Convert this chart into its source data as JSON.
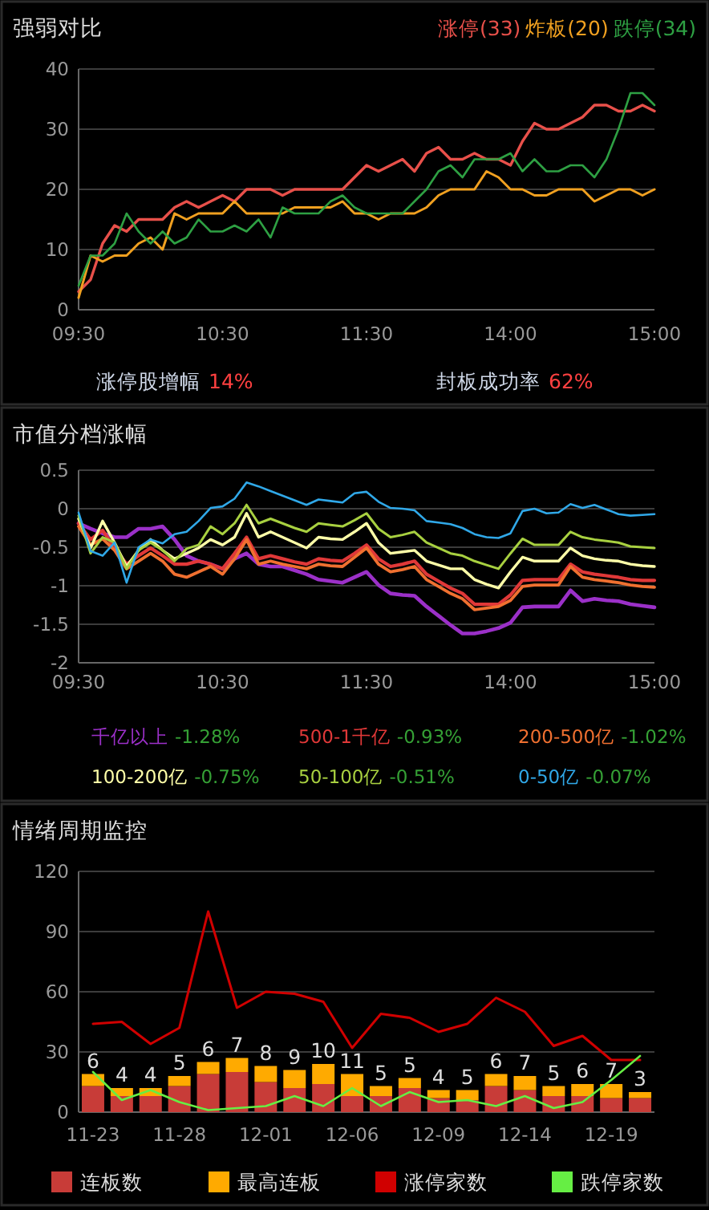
{
  "chart_data": [
    {
      "type": "line",
      "title": "强弱对比",
      "categories": [
        "09:30",
        null,
        null,
        null,
        null,
        null,
        null,
        null,
        null,
        null,
        null,
        null,
        "10:30",
        null,
        null,
        null,
        null,
        null,
        null,
        null,
        null,
        null,
        null,
        null,
        "11:30",
        null,
        null,
        null,
        null,
        null,
        null,
        null,
        null,
        null,
        null,
        null,
        "14:00",
        null,
        null,
        null,
        null,
        null,
        null,
        null,
        null,
        null,
        null,
        null,
        "15:00"
      ],
      "ylim": [
        0,
        40
      ],
      "yticks": [
        0,
        10,
        20,
        30,
        40
      ],
      "grid": "y",
      "legend": "top right",
      "annotations": [
        "涨停股增幅 14%",
        "封板成功率 62%"
      ],
      "series": [
        {
          "name": "涨停(33)",
          "color": "#e8504a",
          "values": [
            3,
            5,
            11,
            14,
            13,
            15,
            15,
            15,
            17,
            18,
            17,
            18,
            19,
            18,
            20,
            20,
            20,
            19,
            20,
            20,
            20,
            20,
            20,
            22,
            24,
            23,
            24,
            25,
            23,
            26,
            27,
            25,
            25,
            26,
            25,
            25,
            24,
            28,
            31,
            30,
            30,
            31,
            32,
            34,
            34,
            33,
            33,
            34,
            33
          ]
        },
        {
          "name": "炸板(20)",
          "color": "#f0a020",
          "values": [
            2,
            9,
            8,
            9,
            9,
            11,
            12,
            10,
            16,
            15,
            16,
            16,
            16,
            18,
            16,
            16,
            16,
            16,
            17,
            17,
            17,
            17,
            18,
            16,
            16,
            15,
            16,
            16,
            16,
            17,
            19,
            20,
            20,
            20,
            23,
            22,
            20,
            20,
            19,
            19,
            20,
            20,
            20,
            18,
            19,
            20,
            20,
            19,
            20
          ]
        },
        {
          "name": "跌停(34)",
          "color": "#2ea043",
          "values": [
            4,
            9,
            9,
            11,
            16,
            13,
            11,
            13,
            11,
            12,
            15,
            13,
            13,
            14,
            13,
            15,
            12,
            17,
            16,
            16,
            16,
            18,
            19,
            17,
            16,
            16,
            16,
            16,
            18,
            20,
            23,
            24,
            22,
            25,
            25,
            25,
            26,
            23,
            25,
            23,
            23,
            24,
            24,
            22,
            25,
            30,
            36,
            36,
            34
          ]
        }
      ]
    },
    {
      "type": "line",
      "title": "市值分档涨幅",
      "categories": [
        "09:30",
        null,
        null,
        null,
        null,
        null,
        null,
        null,
        null,
        null,
        null,
        null,
        "10:30",
        null,
        null,
        null,
        null,
        null,
        null,
        null,
        null,
        null,
        null,
        null,
        "11:30",
        null,
        null,
        null,
        null,
        null,
        null,
        null,
        null,
        null,
        null,
        null,
        "14:00",
        null,
        null,
        null,
        null,
        null,
        null,
        null,
        null,
        null,
        null,
        null,
        "15:00"
      ],
      "ylim": [
        -2,
        0.5
      ],
      "yticks": [
        {
          "value": 0.5,
          "label": "0.5"
        },
        0,
        {
          "value": -0.5,
          "label": "-0.5"
        },
        -1,
        {
          "value": -1.5,
          "label": "-1.5"
        },
        -2
      ],
      "grid": "y",
      "legend": "bottom",
      "series": [
        {
          "name": "千亿以上 -1.28%",
          "color": "#9b30c8",
          "values": [
            -0.19,
            -0.26,
            -0.32,
            -0.37,
            -0.37,
            -0.26,
            -0.26,
            -0.23,
            -0.4,
            -0.61,
            -0.68,
            -0.72,
            -0.78,
            -0.65,
            -0.58,
            -0.72,
            -0.75,
            -0.75,
            -0.8,
            -0.85,
            -0.92,
            -0.94,
            -0.96,
            -0.89,
            -0.82,
            -0.99,
            -1.1,
            -1.12,
            -1.13,
            -1.27,
            -1.39,
            -1.51,
            -1.62,
            -1.62,
            -1.59,
            -1.55,
            -1.48,
            -1.28,
            -1.27,
            -1.27,
            -1.27,
            -1.06,
            -1.2,
            -1.17,
            -1.19,
            -1.2,
            -1.24,
            -1.26,
            -1.28
          ]
        },
        {
          "name": "500-1千亿 -0.93%",
          "color": "#e03838",
          "values": [
            -0.19,
            -0.4,
            -0.28,
            -0.51,
            -0.72,
            -0.61,
            -0.51,
            -0.61,
            -0.72,
            -0.72,
            -0.68,
            -0.72,
            -0.78,
            -0.58,
            -0.37,
            -0.65,
            -0.61,
            -0.65,
            -0.69,
            -0.72,
            -0.65,
            -0.67,
            -0.68,
            -0.58,
            -0.47,
            -0.65,
            -0.75,
            -0.72,
            -0.68,
            -0.85,
            -0.94,
            -1.03,
            -1.1,
            -1.24,
            -1.24,
            -1.24,
            -1.12,
            -0.93,
            -0.92,
            -0.92,
            -0.92,
            -0.72,
            -0.82,
            -0.85,
            -0.87,
            -0.89,
            -0.92,
            -0.93,
            -0.93
          ]
        },
        {
          "name": "200-500亿 -1.02%",
          "color": "#f07030",
          "values": [
            -0.23,
            -0.47,
            -0.39,
            -0.54,
            -0.78,
            -0.68,
            -0.58,
            -0.68,
            -0.85,
            -0.89,
            -0.82,
            -0.75,
            -0.85,
            -0.65,
            -0.4,
            -0.72,
            -0.68,
            -0.72,
            -0.75,
            -0.78,
            -0.72,
            -0.74,
            -0.75,
            -0.63,
            -0.51,
            -0.72,
            -0.82,
            -0.79,
            -0.75,
            -0.92,
            -1.01,
            -1.1,
            -1.17,
            -1.31,
            -1.29,
            -1.27,
            -1.19,
            -1.01,
            -0.99,
            -0.99,
            -0.99,
            -0.75,
            -0.89,
            -0.92,
            -0.94,
            -0.96,
            -0.99,
            -1.01,
            -1.02
          ]
        },
        {
          "name": "100-200亿 -0.75%",
          "color": "#ffffa8",
          "values": [
            -0.13,
            -0.51,
            -0.16,
            -0.44,
            -0.75,
            -0.54,
            -0.4,
            -0.54,
            -0.65,
            -0.58,
            -0.51,
            -0.4,
            -0.47,
            -0.37,
            -0.06,
            -0.37,
            -0.3,
            -0.37,
            -0.44,
            -0.51,
            -0.37,
            -0.39,
            -0.4,
            -0.3,
            -0.19,
            -0.44,
            -0.58,
            -0.56,
            -0.54,
            -0.68,
            -0.73,
            -0.78,
            -0.78,
            -0.92,
            -0.98,
            -1.03,
            -0.82,
            -0.63,
            -0.68,
            -0.68,
            -0.68,
            -0.51,
            -0.61,
            -0.65,
            -0.67,
            -0.68,
            -0.72,
            -0.74,
            -0.75
          ]
        },
        {
          "name": "50-100亿 -0.51%",
          "color": "#a8d040",
          "values": [
            -0.09,
            -0.58,
            -0.37,
            -0.44,
            -0.78,
            -0.54,
            -0.44,
            -0.54,
            -0.68,
            -0.52,
            -0.47,
            -0.23,
            -0.33,
            -0.19,
            0.05,
            -0.19,
            -0.13,
            -0.19,
            -0.25,
            -0.3,
            -0.19,
            -0.21,
            -0.23,
            -0.15,
            -0.06,
            -0.26,
            -0.37,
            -0.34,
            -0.3,
            -0.44,
            -0.51,
            -0.58,
            -0.61,
            -0.68,
            -0.73,
            -0.78,
            -0.58,
            -0.39,
            -0.47,
            -0.47,
            -0.47,
            -0.3,
            -0.37,
            -0.4,
            -0.42,
            -0.44,
            -0.49,
            -0.5,
            -0.51
          ]
        },
        {
          "name": "0-50亿 -0.07%",
          "color": "#30a8e8",
          "values": [
            -0.05,
            -0.55,
            -0.61,
            -0.44,
            -0.96,
            -0.5,
            -0.4,
            -0.45,
            -0.33,
            -0.3,
            -0.16,
            0.01,
            0.03,
            0.13,
            0.34,
            0.29,
            0.23,
            0.17,
            0.11,
            0.05,
            0.12,
            0.1,
            0.08,
            0.2,
            0.22,
            0.09,
            0.01,
            0,
            -0.02,
            -0.16,
            -0.18,
            -0.2,
            -0.25,
            -0.33,
            -0.37,
            -0.38,
            -0.32,
            -0.03,
            0,
            -0.06,
            -0.05,
            0.06,
            0.01,
            0.05,
            -0.01,
            -0.07,
            -0.09,
            -0.08,
            -0.07
          ]
        }
      ]
    },
    {
      "type": "bar",
      "title": "情绪周期监控",
      "stacked": true,
      "categories": [
        "11-23",
        null,
        null,
        "11-28",
        null,
        null,
        "12-01",
        null,
        null,
        "12-06",
        null,
        null,
        "12-09",
        null,
        null,
        "12-14",
        null,
        null,
        "12-19",
        null
      ],
      "ylim": [
        0,
        120
      ],
      "yticks": [
        0,
        30,
        60,
        90,
        120
      ],
      "grid": "y",
      "legend": "bottom",
      "series": [
        {
          "name": "连板数",
          "type": "bar",
          "color": "#c83c38",
          "values": [
            13,
            8,
            8,
            13,
            19,
            20,
            15,
            12,
            14,
            8,
            8,
            12,
            7,
            6,
            13,
            11,
            8,
            8,
            7,
            7
          ]
        },
        {
          "name": "最高连板",
          "type": "bar",
          "color": "#ffaa00",
          "values": [
            6,
            4,
            4,
            5,
            6,
            7,
            8,
            9,
            10,
            11,
            5,
            5,
            4,
            5,
            6,
            7,
            5,
            6,
            7,
            3
          ],
          "value_labels": [
            "6",
            "4",
            "4",
            "5",
            "6",
            "7",
            "8",
            "9",
            "10",
            "11",
            "5",
            "5",
            "4",
            "5",
            "6",
            "7",
            "5",
            "6",
            "7",
            "3"
          ]
        },
        {
          "name": "涨停家数",
          "type": "line",
          "color": "#d00000",
          "values": [
            44,
            45,
            34,
            42,
            100,
            52,
            60,
            59,
            55,
            32,
            49,
            47,
            40,
            44,
            57,
            50,
            33,
            38,
            26,
            26
          ]
        },
        {
          "name": "跌停家数",
          "type": "line",
          "color": "#66ee44",
          "values": [
            20,
            6,
            11,
            5,
            1,
            2,
            3,
            8,
            3,
            12,
            3,
            10,
            5,
            6,
            3,
            8,
            2,
            5,
            16,
            28
          ]
        }
      ]
    }
  ]
}
